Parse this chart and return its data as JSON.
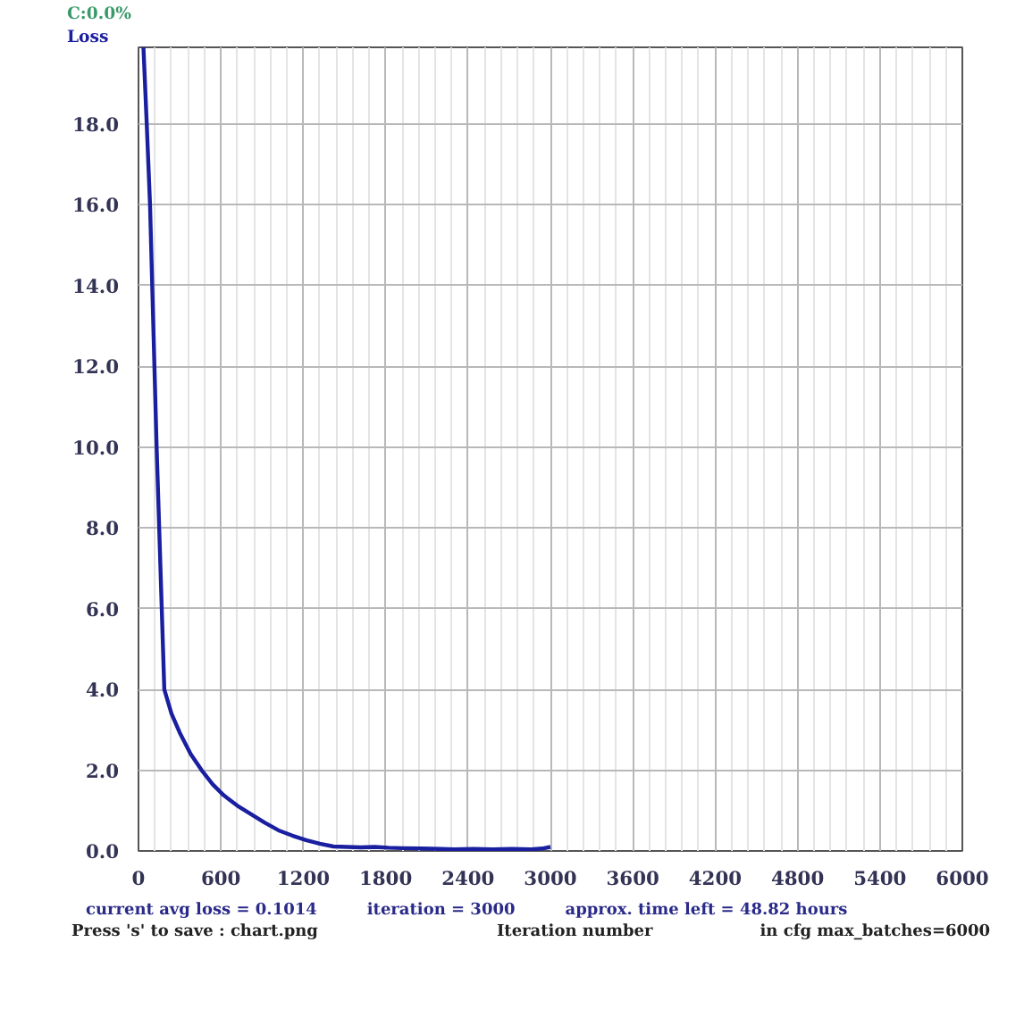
{
  "chart_data": {
    "type": "line",
    "xlabel": "Iteration number",
    "annotations": [
      "C:0.0%",
      "current avg loss = 0.1014",
      "iteration = 3000",
      "approx. time left = 48.82 hours",
      "Press 's' to save : chart.png",
      "in cfg max_batches=6000"
    ],
    "series": [
      {
        "name": "Loss",
        "color": "#1a1fa0",
        "x": [
          36,
          60,
          84,
          132,
          188,
          240,
          300,
          380,
          460,
          540,
          620,
          720,
          820,
          920,
          1020,
          1120,
          1220,
          1320,
          1420,
          1520,
          1620,
          1720,
          1820,
          1920,
          2060,
          2200,
          2300,
          2440,
          2580,
          2720,
          2860,
          2940,
          3000
        ],
        "values": [
          19.9,
          18.0,
          16.0,
          10.0,
          4.0,
          3.4,
          2.93,
          2.4,
          2.0,
          1.65,
          1.38,
          1.12,
          0.91,
          0.7,
          0.51,
          0.38,
          0.27,
          0.18,
          0.11,
          0.1,
          0.09,
          0.1,
          0.08,
          0.07,
          0.06,
          0.05,
          0.04,
          0.05,
          0.04,
          0.05,
          0.04,
          0.06,
          0.1
        ]
      }
    ],
    "xlim": [
      0,
      6000
    ],
    "ylim": [
      0,
      19.9
    ],
    "xticks": [
      0,
      600,
      1200,
      1800,
      2400,
      3000,
      3600,
      4200,
      4800,
      5400,
      6000
    ],
    "yticks": [
      {
        "value": 0,
        "label": "0.0"
      },
      {
        "value": 2,
        "label": "2.0"
      },
      {
        "value": 4,
        "label": "4.0"
      },
      {
        "value": 6,
        "label": "6.0"
      },
      {
        "value": 8,
        "label": "8.0"
      },
      {
        "value": 10,
        "label": "10.0"
      },
      {
        "value": 12,
        "label": "12.0"
      },
      {
        "value": 14,
        "label": "14.0"
      },
      {
        "value": 16,
        "label": "16.0"
      },
      {
        "value": 18,
        "label": "18.0"
      }
    ],
    "grid": true,
    "marker": "none",
    "line_style": "solid"
  }
}
